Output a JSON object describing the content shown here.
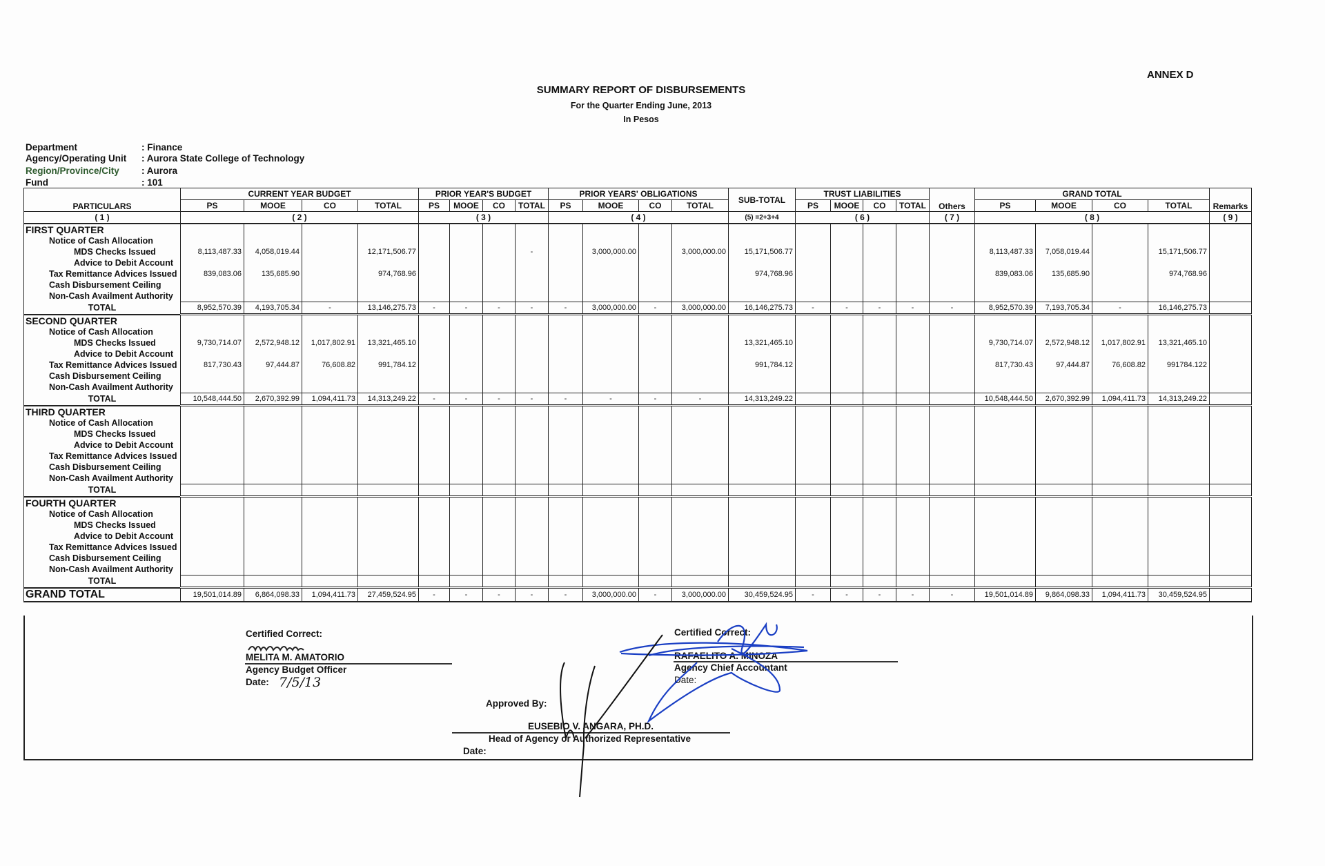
{
  "annex": "ANNEX D",
  "title": "SUMMARY REPORT OF DISBURSEMENTS",
  "subtitle": "For the Quarter Ending June, 2013",
  "currency_note": "In Pesos",
  "info": [
    {
      "label": "Department",
      "value": ": Finance"
    },
    {
      "label": "Agency/Operating Unit",
      "value": ": Aurora State College of Technology"
    },
    {
      "label": "Region/Province/City",
      "value": ": Aurora"
    },
    {
      "label": "Fund",
      "value": ": 101"
    }
  ],
  "headers": {
    "particulars": "PARTICULARS",
    "groups": [
      "CURRENT YEAR BUDGET",
      "PRIOR YEAR'S BUDGET",
      "PRIOR YEARS' OBLIGATIONS",
      "SUB-TOTAL",
      "TRUST LIABILITIES",
      "Others",
      "GRAND TOTAL",
      "Remarks"
    ],
    "sub": [
      "PS",
      "MOOE",
      "CO",
      "TOTAL"
    ],
    "numbers": [
      "( 1 )",
      "( 2 )",
      "( 3 )",
      "( 4 )",
      "(5) =2+3+4",
      "( 6 )",
      "( 7 )",
      "( 8 )",
      "( 9 )"
    ]
  },
  "quarters": [
    {
      "name": "FIRST QUARTER",
      "rows": [
        {
          "label": "Notice of Cash Allocation",
          "indent": 1,
          "values": []
        },
        {
          "label": "MDS Checks Issued",
          "indent": 2,
          "values": [
            "8,113,487.33",
            "4,058,019.44",
            "",
            "12,171,506.77",
            "",
            "",
            "",
            "-",
            "",
            "3,000,000.00",
            "",
            "3,000,000.00",
            "15,171,506.77",
            "",
            "",
            "",
            "",
            "",
            "8,113,487.33",
            "7,058,019.44",
            "",
            "15,171,506.77",
            ""
          ]
        },
        {
          "label": "Advice to Debit Account",
          "indent": 2,
          "values": []
        },
        {
          "label": "Tax Remittance Advices Issued",
          "indent": 1,
          "values": [
            "839,083.06",
            "135,685.90",
            "",
            "974,768.96",
            "",
            "",
            "",
            "",
            "",
            "",
            "",
            "",
            "974,768.96",
            "",
            "",
            "",
            "",
            "",
            "839,083.06",
            "135,685.90",
            "",
            "974,768.96",
            ""
          ]
        },
        {
          "label": "Cash Disbursement Ceiling",
          "indent": 1,
          "values": []
        },
        {
          "label": "Non-Cash Availment Authority",
          "indent": 1,
          "values": []
        },
        {
          "label": "TOTAL",
          "total": true,
          "values": [
            "8,952,570.39",
            "4,193,705.34",
            "-",
            "13,146,275.73",
            "-",
            "-",
            "-",
            "-",
            "-",
            "3,000,000.00",
            "-",
            "3,000,000.00",
            "16,146,275.73",
            "-",
            "-",
            "-",
            "-",
            "-",
            "8,952,570.39",
            "7,193,705.34",
            "-",
            "16,146,275.73",
            ""
          ]
        }
      ]
    },
    {
      "name": "SECOND QUARTER",
      "rows": [
        {
          "label": "Notice of Cash Allocation",
          "indent": 1,
          "values": []
        },
        {
          "label": "MDS Checks Issued",
          "indent": 2,
          "values": [
            "9,730,714.07",
            "2,572,948.12",
            "1,017,802.91",
            "13,321,465.10",
            "",
            "",
            "",
            "",
            "",
            "",
            "",
            "",
            "13,321,465.10",
            "",
            "",
            "",
            "",
            "",
            "9,730,714.07",
            "2,572,948.12",
            "1,017,802.91",
            "13,321,465.10",
            ""
          ]
        },
        {
          "label": "Advice to Debit Account",
          "indent": 2,
          "values": []
        },
        {
          "label": "Tax Remittance Advices Issued",
          "indent": 1,
          "values": [
            "817,730.43",
            "97,444.87",
            "76,608.82",
            "991,784.12",
            "",
            "",
            "",
            "",
            "",
            "",
            "",
            "",
            "991,784.12",
            "",
            "",
            "",
            "",
            "",
            "817,730.43",
            "97,444.87",
            "76,608.82",
            "991784.122",
            ""
          ]
        },
        {
          "label": "Cash Disbursement Ceiling",
          "indent": 1,
          "values": []
        },
        {
          "label": "Non-Cash Availment Authority",
          "indent": 1,
          "values": []
        },
        {
          "label": "TOTAL",
          "total": true,
          "values": [
            "10,548,444.50",
            "2,670,392.99",
            "1,094,411.73",
            "14,313,249.22",
            "-",
            "-",
            "-",
            "-",
            "-",
            "-",
            "-",
            "-",
            "14,313,249.22",
            "",
            "",
            "",
            "",
            "",
            "10,548,444.50",
            "2,670,392.99",
            "1,094,411.73",
            "14,313,249.22",
            ""
          ]
        }
      ]
    },
    {
      "name": "THIRD QUARTER",
      "rows": [
        {
          "label": "Notice of Cash Allocation",
          "indent": 1,
          "values": []
        },
        {
          "label": "MDS Checks Issued",
          "indent": 2,
          "values": []
        },
        {
          "label": "Advice to Debit Account",
          "indent": 2,
          "values": []
        },
        {
          "label": "Tax Remittance Advices Issued",
          "indent": 1,
          "values": []
        },
        {
          "label": "Cash Disbursement Ceiling",
          "indent": 1,
          "values": []
        },
        {
          "label": "Non-Cash Availment Authority",
          "indent": 1,
          "values": []
        },
        {
          "label": "TOTAL",
          "total": true,
          "values": []
        }
      ]
    },
    {
      "name": "FOURTH  QUARTER",
      "rows": [
        {
          "label": "Notice of Cash Allocation",
          "indent": 1,
          "values": []
        },
        {
          "label": "MDS Checks Issued",
          "indent": 2,
          "values": []
        },
        {
          "label": "Advice to Debit Account",
          "indent": 2,
          "values": []
        },
        {
          "label": "Tax Remittance Advices Issued",
          "indent": 1,
          "values": []
        },
        {
          "label": "Cash Disbursement Ceiling",
          "indent": 1,
          "values": []
        },
        {
          "label": "Non-Cash Availment Authority",
          "indent": 1,
          "values": []
        },
        {
          "label": "TOTAL",
          "total": true,
          "values": []
        }
      ]
    }
  ],
  "grand_total": {
    "label": "GRAND TOTAL",
    "values": [
      "19,501,014.89",
      "6,864,098.33",
      "1,094,411.73",
      "27,459,524.95",
      "-",
      "-",
      "-",
      "-",
      "-",
      "3,000,000.00",
      "-",
      "3,000,000.00",
      "30,459,524.95",
      "-",
      "-",
      "-",
      "-",
      "-",
      "19,501,014.89",
      "9,864,098.33",
      "1,094,411.73",
      "30,459,524.95",
      ""
    ]
  },
  "signatures": {
    "budget": {
      "caption": "Certified Correct:",
      "name": "MELITA M. AMATORIO",
      "position": "Agency Budget Officer",
      "date_label": "Date:",
      "date_value": "7/5/13"
    },
    "accountant": {
      "caption": "Certified Correct:",
      "name": "RAFAELITO A. MINOZA",
      "position": "Agency Chief Accountant",
      "date_label": "Date:"
    },
    "head": {
      "caption": "Approved By:",
      "name": "EUSEBIO V. ANGARA, PH.D.",
      "position": "Head of Agency or Authorized Representative",
      "date_label": "Date:"
    },
    "ink_color": "#1a3fc4"
  }
}
